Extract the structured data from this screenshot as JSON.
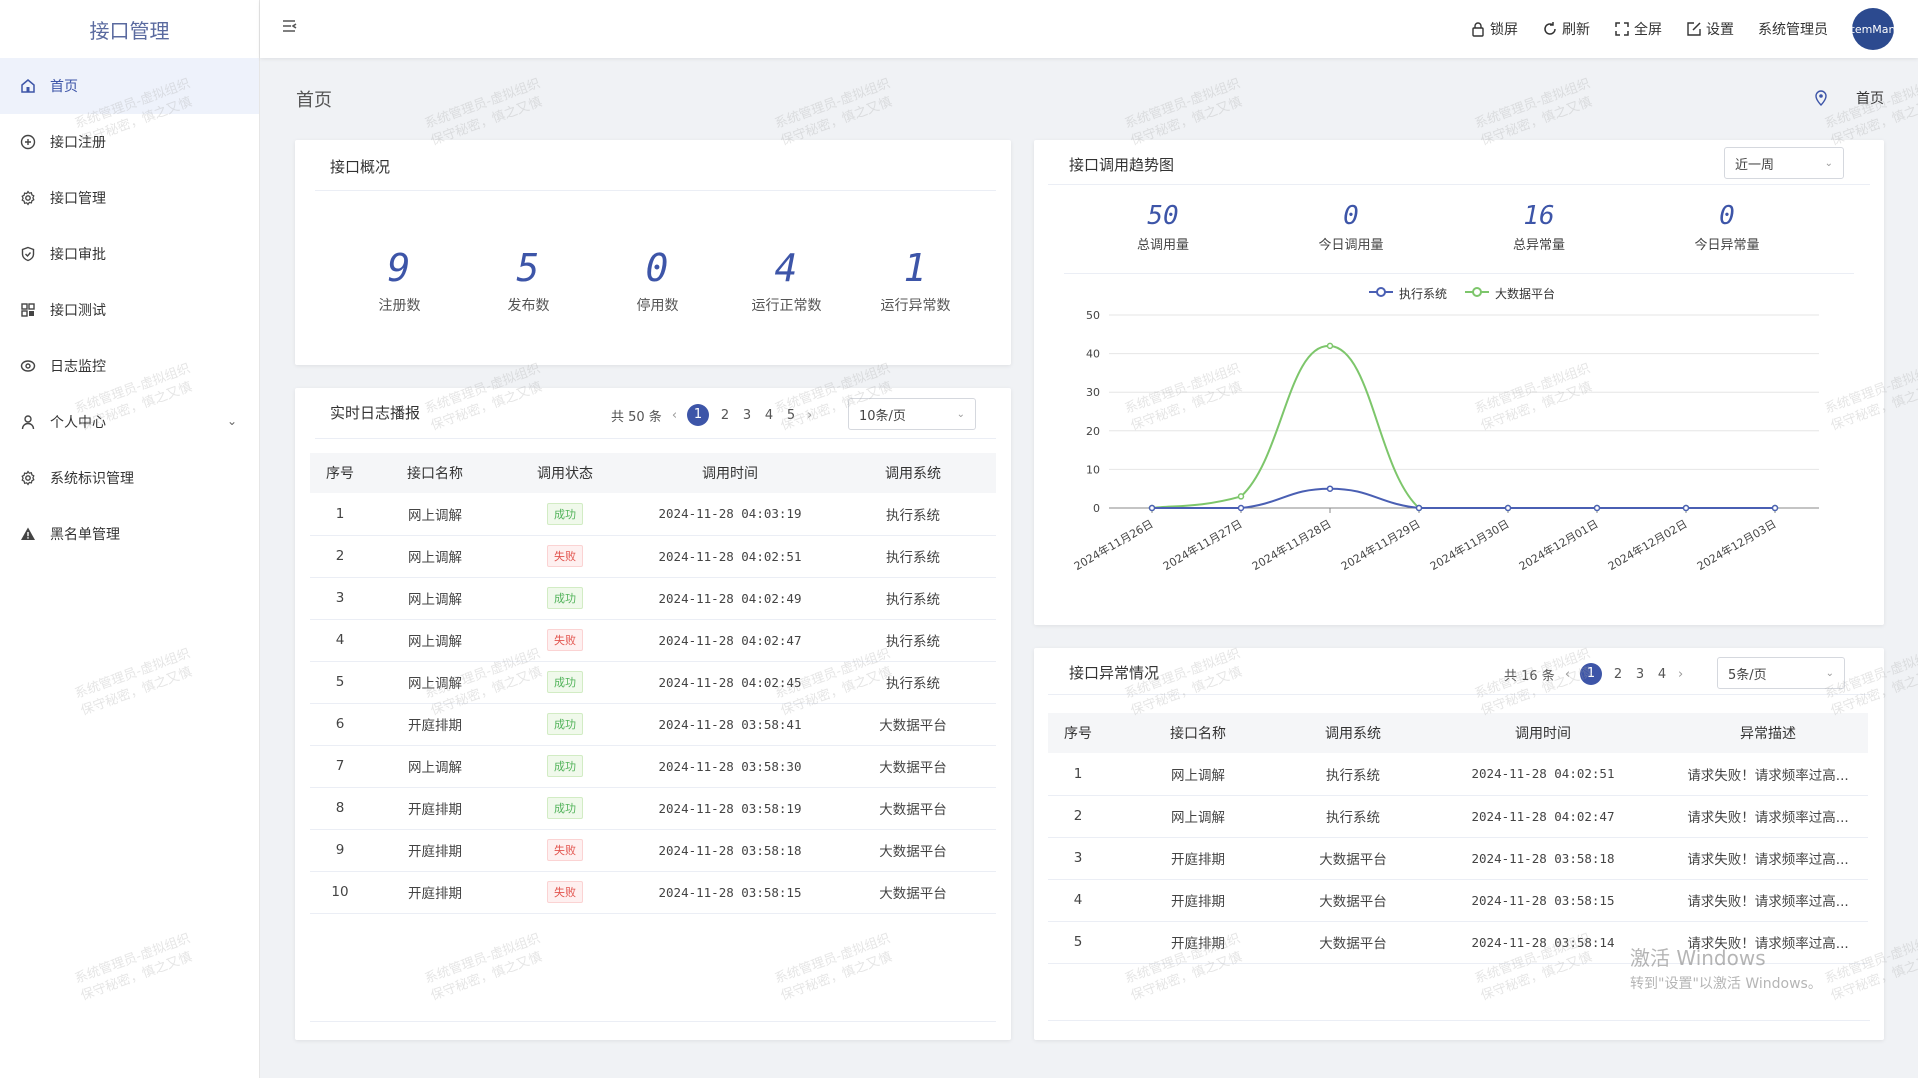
{
  "app": {
    "title": "接口管理"
  },
  "sidebar": {
    "items": [
      {
        "label": "首页",
        "icon": "home-icon",
        "active": true
      },
      {
        "label": "接口注册",
        "icon": "plus-circle-icon"
      },
      {
        "label": "接口管理",
        "icon": "gear-icon"
      },
      {
        "label": "接口审批",
        "icon": "shield-check-icon"
      },
      {
        "label": "接口测试",
        "icon": "grid-icon"
      },
      {
        "label": "日志监控",
        "icon": "eye-icon"
      },
      {
        "label": "个人中心",
        "icon": "user-icon",
        "has_children": true
      },
      {
        "label": "系统标识管理",
        "icon": "gear-icon"
      },
      {
        "label": "黑名单管理",
        "icon": "warning-icon"
      }
    ]
  },
  "header": {
    "lock": "锁屏",
    "refresh": "刷新",
    "fullscreen": "全屏",
    "settings": "设置",
    "user": "系统管理员",
    "avatar_text": "temMan"
  },
  "page": {
    "title": "首页",
    "breadcrumb": "首页"
  },
  "overview": {
    "title": "接口概况",
    "stats": [
      {
        "value": "9",
        "label": "注册数"
      },
      {
        "value": "5",
        "label": "发布数"
      },
      {
        "value": "0",
        "label": "停用数"
      },
      {
        "value": "4",
        "label": "运行正常数"
      },
      {
        "value": "1",
        "label": "运行异常数"
      }
    ]
  },
  "log": {
    "title": "实时日志播报",
    "total": "共 50 条",
    "pages": [
      "1",
      "2",
      "3",
      "4",
      "5"
    ],
    "page_size": "10条/页",
    "columns": [
      "序号",
      "接口名称",
      "调用状态",
      "调用时间",
      "调用系统"
    ],
    "rows": [
      {
        "no": "1",
        "name": "网上调解",
        "status": "成功",
        "ok": true,
        "time": "2024-11-28 04:03:19",
        "system": "执行系统"
      },
      {
        "no": "2",
        "name": "网上调解",
        "status": "失败",
        "ok": false,
        "time": "2024-11-28 04:02:51",
        "system": "执行系统"
      },
      {
        "no": "3",
        "name": "网上调解",
        "status": "成功",
        "ok": true,
        "time": "2024-11-28 04:02:49",
        "system": "执行系统"
      },
      {
        "no": "4",
        "name": "网上调解",
        "status": "失败",
        "ok": false,
        "time": "2024-11-28 04:02:47",
        "system": "执行系统"
      },
      {
        "no": "5",
        "name": "网上调解",
        "status": "成功",
        "ok": true,
        "time": "2024-11-28 04:02:45",
        "system": "执行系统"
      },
      {
        "no": "6",
        "name": "开庭排期",
        "status": "成功",
        "ok": true,
        "time": "2024-11-28 03:58:41",
        "system": "大数据平台"
      },
      {
        "no": "7",
        "name": "网上调解",
        "status": "成功",
        "ok": true,
        "time": "2024-11-28 03:58:30",
        "system": "大数据平台"
      },
      {
        "no": "8",
        "name": "开庭排期",
        "status": "成功",
        "ok": true,
        "time": "2024-11-28 03:58:19",
        "system": "大数据平台"
      },
      {
        "no": "9",
        "name": "开庭排期",
        "status": "失败",
        "ok": false,
        "time": "2024-11-28 03:58:18",
        "system": "大数据平台"
      },
      {
        "no": "10",
        "name": "开庭排期",
        "status": "失败",
        "ok": false,
        "time": "2024-11-28 03:58:15",
        "system": "大数据平台"
      }
    ]
  },
  "trend": {
    "title": "接口调用趋势图",
    "range": "近一周",
    "stats": [
      {
        "value": "50",
        "label": "总调用量"
      },
      {
        "value": "0",
        "label": "今日调用量"
      },
      {
        "value": "16",
        "label": "总异常量"
      },
      {
        "value": "0",
        "label": "今日异常量"
      }
    ]
  },
  "chart_data": {
    "type": "line",
    "categories": [
      "2024年11月26日",
      "2024年11月27日",
      "2024年11月28日",
      "2024年11月29日",
      "2024年11月30日",
      "2024年12月01日",
      "2024年12月02日",
      "2024年12月03日"
    ],
    "series": [
      {
        "name": "执行系统",
        "color": "#4a5fb3",
        "values": [
          0,
          0,
          5,
          0,
          0,
          0,
          0,
          0
        ]
      },
      {
        "name": "大数据平台",
        "color": "#7dc66b",
        "values": [
          0,
          3,
          42,
          0,
          0,
          0,
          0,
          0
        ]
      }
    ],
    "ylim": [
      0,
      50
    ],
    "yticks": [
      0,
      10,
      20,
      30,
      40,
      50
    ],
    "smooth": true,
    "legend": "top-center",
    "grid": true
  },
  "abnormal": {
    "title": "接口异常情况",
    "total": "共 16 条",
    "pages": [
      "1",
      "2",
      "3",
      "4"
    ],
    "page_size": "5条/页",
    "columns": [
      "序号",
      "接口名称",
      "调用系统",
      "调用时间",
      "异常描述"
    ],
    "rows": [
      {
        "no": "1",
        "name": "网上调解",
        "system": "执行系统",
        "time": "2024-11-28 04:02:51",
        "desc": "请求失败！请求频率过高..."
      },
      {
        "no": "2",
        "name": "网上调解",
        "system": "执行系统",
        "time": "2024-11-28 04:02:47",
        "desc": "请求失败！请求频率过高..."
      },
      {
        "no": "3",
        "name": "开庭排期",
        "system": "大数据平台",
        "time": "2024-11-28 03:58:18",
        "desc": "请求失败！请求频率过高..."
      },
      {
        "no": "4",
        "name": "开庭排期",
        "system": "大数据平台",
        "time": "2024-11-28 03:58:15",
        "desc": "请求失败！请求频率过高..."
      },
      {
        "no": "5",
        "name": "开庭排期",
        "system": "大数据平台",
        "time": "2024-11-28 03:58:14",
        "desc": "请求失败！请求频率过高..."
      }
    ]
  },
  "watermark": {
    "line1": "系统管理员-虚拟组织",
    "line2": "保守秘密，慎之又慎"
  },
  "activation": {
    "line1": "激活 Windows",
    "line2": "转到\"设置\"以激活 Windows。"
  }
}
